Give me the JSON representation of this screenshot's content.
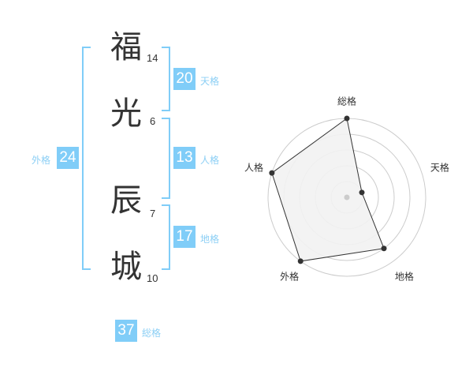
{
  "name": [
    {
      "char": "福",
      "strokes": "14"
    },
    {
      "char": "光",
      "strokes": "6"
    },
    {
      "char": "辰",
      "strokes": "7"
    },
    {
      "char": "城",
      "strokes": "10"
    }
  ],
  "kaku": {
    "tenkaku": {
      "label": "天格",
      "value": "20"
    },
    "jinkaku": {
      "label": "人格",
      "value": "13"
    },
    "chikaku": {
      "label": "地格",
      "value": "17"
    },
    "gaikaku": {
      "label": "外格",
      "value": "24"
    },
    "soukaku": {
      "label": "総格",
      "value": "37"
    }
  },
  "colors": {
    "accent": "#80cdf8",
    "label": "#8ccff5",
    "fill": "#f2f2f2",
    "ring": "#cccccc"
  },
  "chart_data": {
    "type": "radar",
    "axes": [
      "総格",
      "天格",
      "地格",
      "外格",
      "人格"
    ],
    "values": [
      5,
      1,
      4,
      5,
      5
    ],
    "range": [
      0,
      5
    ],
    "rings": 5
  }
}
